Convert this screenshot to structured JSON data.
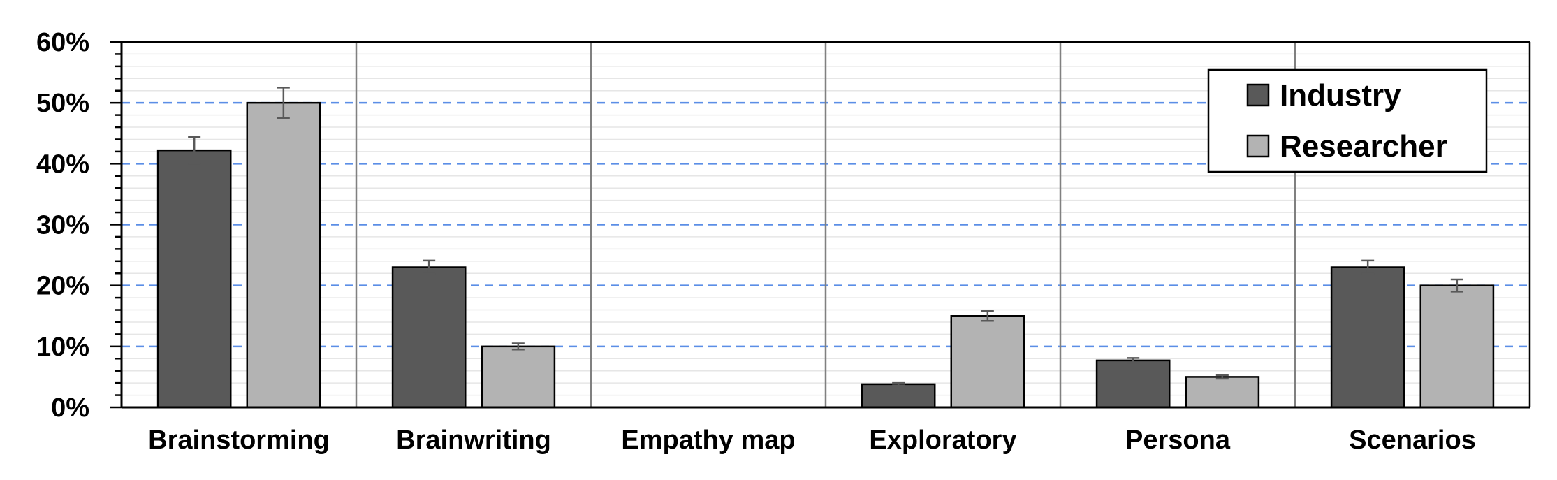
{
  "chart_data": {
    "type": "bar",
    "categories": [
      "Brainstorming",
      "Brainwriting",
      "Empathy map",
      "Exploratory",
      "Persona",
      "Scenarios"
    ],
    "series": [
      {
        "name": "Industry",
        "values": [
          42.2,
          23.0,
          0,
          3.8,
          7.7,
          23.0
        ],
        "errors": [
          2.2,
          1.1,
          0,
          0.2,
          0.4,
          1.1
        ],
        "color": "#595959"
      },
      {
        "name": "Researcher",
        "values": [
          50.0,
          10.0,
          0,
          15.0,
          5.0,
          20.0
        ],
        "errors": [
          2.5,
          0.5,
          0,
          0.8,
          0.3,
          1.0
        ],
        "color": "#b3b3b3"
      }
    ],
    "y_ticks": [
      "0%",
      "10%",
      "20%",
      "30%",
      "40%",
      "50%",
      "60%"
    ],
    "ylim": [
      0,
      60
    ],
    "y_unit": "%",
    "major_gridlines": [
      10,
      20,
      30,
      40,
      50
    ],
    "major_grid_color": "#5b8ee6",
    "legend_position": "top-right",
    "grid": true
  }
}
